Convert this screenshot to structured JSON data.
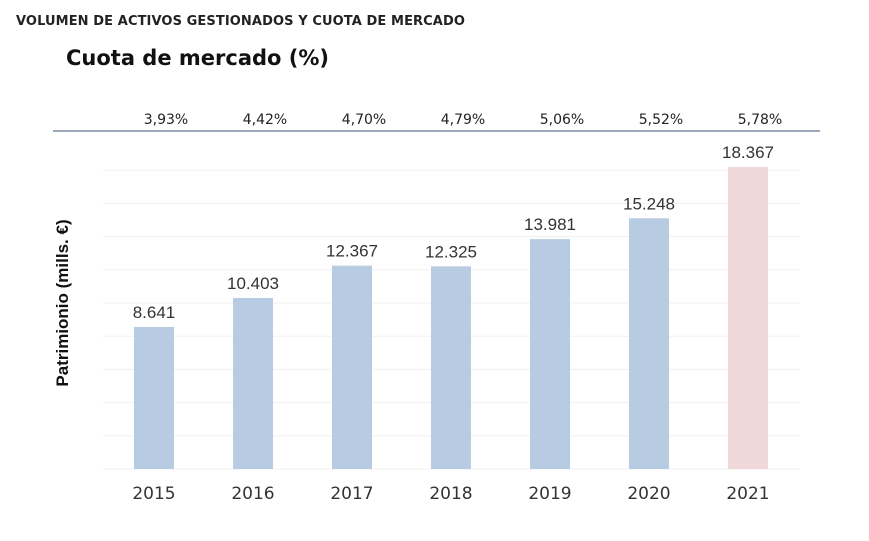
{
  "header": {
    "title": "VOLUMEN DE ACTIVOS GESTIONADOS Y CUOTA DE MERCADO",
    "subtitle": "Cuota de mercado (%)"
  },
  "colors": {
    "bar": "#b7cce3",
    "bar_highlight": "#f0d7d9",
    "separator": "#9aa8b8",
    "grid": "#f0f0f0"
  },
  "chart_data": {
    "type": "bar",
    "title": "Cuota de mercado (%)",
    "xlabel": "",
    "ylabel": "Patrimionio (mills. €)",
    "categories": [
      "2015",
      "2016",
      "2017",
      "2018",
      "2019",
      "2020",
      "2021"
    ],
    "values": [
      8641,
      10403,
      12367,
      12325,
      13981,
      15248,
      18367
    ],
    "value_labels": [
      "8.641",
      "10.403",
      "12.367",
      "12.325",
      "13.981",
      "15.248",
      "18.367"
    ],
    "market_share": [
      "3,93%",
      "4,42%",
      "4,70%",
      "4,79%",
      "5,06%",
      "5,52%",
      "5,78%"
    ],
    "highlight_category": "2021",
    "ylim": [
      0,
      18367
    ],
    "grid": true,
    "y_ticks_visible": false
  }
}
